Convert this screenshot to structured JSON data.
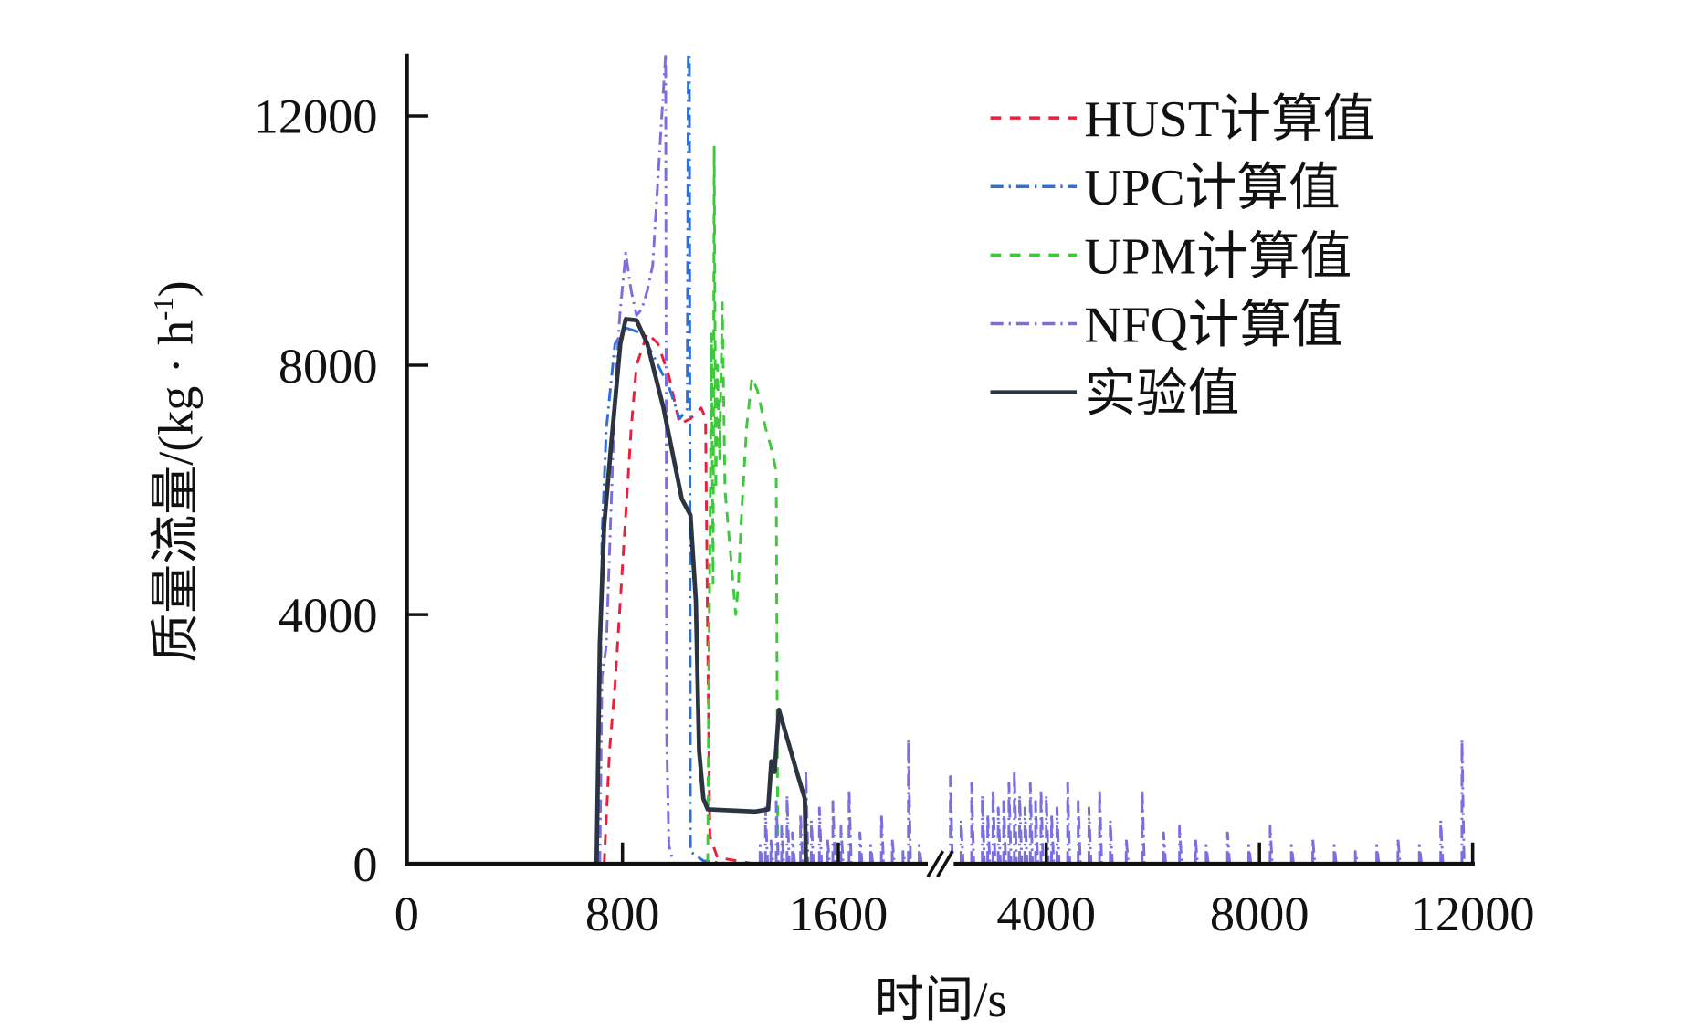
{
  "chart_data": {
    "type": "line",
    "title": "",
    "xlabel": "时间/s",
    "ylabel": "质量流量/(kg · h⁻¹)",
    "ylabel_main": "质量流量/(kg · h",
    "ylabel_sup": "-1",
    "ylabel_close": ")",
    "ylim": [
      0,
      13000
    ],
    "x_axis_break": [
      1950,
      2000
    ],
    "xticks": [
      {
        "value": 0,
        "label": "0"
      },
      {
        "value": 800,
        "label": "800"
      },
      {
        "value": 1600,
        "label": "1600"
      },
      {
        "value": 4000,
        "label": "4000"
      },
      {
        "value": 8000,
        "label": "8000"
      },
      {
        "value": 12000,
        "label": "12000"
      }
    ],
    "yticks": [
      {
        "value": 0,
        "label": "0"
      },
      {
        "value": 4000,
        "label": "4000"
      },
      {
        "value": 8000,
        "label": "8000"
      },
      {
        "value": 12000,
        "label": "12000"
      }
    ],
    "grid": false,
    "legend_position": "top-right",
    "series": [
      {
        "name": "HUST计算值",
        "color": "#e8203c",
        "dash": "10 8",
        "points": [
          [
            732,
            0
          ],
          [
            752,
            1820
          ],
          [
            772,
            2850
          ],
          [
            792,
            4224
          ],
          [
            812,
            5597
          ],
          [
            832,
            6971
          ],
          [
            852,
            8001
          ],
          [
            892,
            8516
          ],
          [
            932,
            8345
          ],
          [
            972,
            7830
          ],
          [
            1012,
            7057
          ],
          [
            1052,
            7143
          ],
          [
            1092,
            7315
          ],
          [
            1108,
            7143
          ],
          [
            1116,
            3537
          ],
          [
            1124,
            446
          ],
          [
            1152,
            103
          ],
          [
            1292,
            0
          ],
          [
            1600,
            0
          ]
        ]
      },
      {
        "name": "UPC计算值",
        "color": "#2f6fd6",
        "dash": "12 5 2 5",
        "points": [
          [
            712,
            0
          ],
          [
            724,
            5254
          ],
          [
            740,
            6971
          ],
          [
            772,
            8345
          ],
          [
            812,
            8602
          ],
          [
            872,
            8516
          ],
          [
            932,
            8001
          ],
          [
            972,
            7658
          ],
          [
            1012,
            7143
          ],
          [
            1040,
            7300
          ],
          [
            1044,
            13000
          ],
          [
            1048,
            13000
          ],
          [
            1052,
            200
          ],
          [
            1100,
            50
          ],
          [
            1200,
            0
          ]
        ]
      },
      {
        "name": "UPM计算值",
        "color": "#3ec93a",
        "dash": "10 8",
        "points": [
          [
            1116,
            0
          ],
          [
            1120,
            3000
          ],
          [
            1124,
            5000
          ],
          [
            1130,
            8500
          ],
          [
            1136,
            4500
          ],
          [
            1140,
            11500
          ],
          [
            1146,
            6000
          ],
          [
            1152,
            8000
          ],
          [
            1160,
            6500
          ],
          [
            1170,
            9000
          ],
          [
            1180,
            6000
          ],
          [
            1200,
            5000
          ],
          [
            1220,
            4000
          ],
          [
            1230,
            4500
          ],
          [
            1240,
            5500
          ],
          [
            1260,
            7000
          ],
          [
            1280,
            7800
          ],
          [
            1300,
            7600
          ],
          [
            1330,
            7000
          ],
          [
            1350,
            6700
          ],
          [
            1370,
            6300
          ],
          [
            1376,
            0
          ]
        ]
      },
      {
        "name": "NFQ计算值",
        "color": "#7b6fe0",
        "dash": "12 5 2 5",
        "points": [
          [
            716,
            0
          ],
          [
            724,
            3000
          ],
          [
            740,
            3500
          ],
          [
            752,
            5000
          ],
          [
            772,
            7500
          ],
          [
            790,
            8800
          ],
          [
            812,
            9800
          ],
          [
            832,
            9200
          ],
          [
            852,
            8800
          ],
          [
            872,
            8900
          ],
          [
            892,
            9200
          ],
          [
            912,
            9600
          ],
          [
            960,
            13000
          ],
          [
            964,
            2000
          ],
          [
            972,
            300
          ],
          [
            990,
            0
          ],
          [
            1300,
            0
          ]
        ],
        "spikes": [
          [
            1310,
            300
          ],
          [
            1330,
            900
          ],
          [
            1350,
            400
          ],
          [
            1370,
            1000
          ],
          [
            1390,
            600
          ],
          [
            1410,
            1100
          ],
          [
            1430,
            500
          ],
          [
            1460,
            800
          ],
          [
            1480,
            1500
          ],
          [
            1500,
            700
          ],
          [
            1530,
            900
          ],
          [
            1560,
            400
          ],
          [
            1580,
            1000
          ],
          [
            1610,
            600
          ],
          [
            1640,
            1200
          ],
          [
            1680,
            500
          ],
          [
            1720,
            300
          ],
          [
            1760,
            800
          ],
          [
            1800,
            400
          ],
          [
            1840,
            200
          ],
          [
            1860,
            2000
          ],
          [
            1900,
            300
          ],
          [
            2200,
            1400
          ],
          [
            2400,
            700
          ],
          [
            2600,
            1300
          ],
          [
            2800,
            1100
          ],
          [
            2900,
            800
          ],
          [
            3000,
            1200
          ],
          [
            3100,
            900
          ],
          [
            3200,
            1000
          ],
          [
            3300,
            1300
          ],
          [
            3400,
            1500
          ],
          [
            3500,
            1100
          ],
          [
            3600,
            900
          ],
          [
            3700,
            1300
          ],
          [
            3800,
            1000
          ],
          [
            3900,
            1200
          ],
          [
            4000,
            1100
          ],
          [
            4100,
            800
          ],
          [
            4200,
            900
          ],
          [
            4400,
            1300
          ],
          [
            4600,
            1000
          ],
          [
            4800,
            900
          ],
          [
            5000,
            1200
          ],
          [
            5200,
            700
          ],
          [
            5500,
            400
          ],
          [
            5800,
            1200
          ],
          [
            6200,
            500
          ],
          [
            6500,
            600
          ],
          [
            6800,
            400
          ],
          [
            7000,
            300
          ],
          [
            7400,
            500
          ],
          [
            7800,
            300
          ],
          [
            8200,
            600
          ],
          [
            8600,
            300
          ],
          [
            9000,
            400
          ],
          [
            9400,
            300
          ],
          [
            9800,
            200
          ],
          [
            10200,
            300
          ],
          [
            10600,
            400
          ],
          [
            11000,
            300
          ],
          [
            11400,
            700
          ],
          [
            11800,
            2000
          ]
        ]
      },
      {
        "name": "实验值",
        "color": "#2b3440",
        "dash": "",
        "points": [
          [
            704,
            0
          ],
          [
            716,
            3537
          ],
          [
            732,
            5426
          ],
          [
            756,
            6628
          ],
          [
            792,
            8345
          ],
          [
            812,
            8740
          ],
          [
            852,
            8723
          ],
          [
            892,
            8345
          ],
          [
            952,
            7315
          ],
          [
            992,
            6456
          ],
          [
            1020,
            5855
          ],
          [
            1052,
            5597
          ],
          [
            1072,
            4224
          ],
          [
            1084,
            1820
          ],
          [
            1100,
            1047
          ],
          [
            1116,
            875
          ],
          [
            1292,
            841
          ],
          [
            1340,
            875
          ],
          [
            1352,
            1648
          ],
          [
            1364,
            1476
          ],
          [
            1380,
            2473
          ],
          [
            1412,
            1991
          ],
          [
            1452,
            1391
          ],
          [
            1476,
            1047
          ],
          [
            1480,
            0
          ]
        ]
      }
    ]
  }
}
